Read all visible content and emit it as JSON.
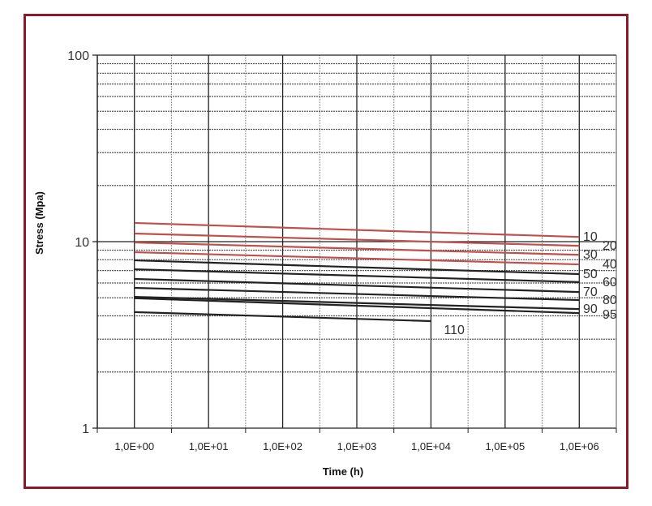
{
  "chart_data": {
    "type": "line",
    "title": "",
    "xlabel": "Time (h)",
    "ylabel": "Stress (Mpa)",
    "x_scale": "log",
    "y_scale": "log",
    "x_categories": [
      "1,0E+00",
      "1,0E+01",
      "1,0E+02",
      "1,0E+03",
      "1,0E+04",
      "1,0E+05",
      "1,0E+06"
    ],
    "x_values": [
      1,
      10,
      100,
      1000,
      10000,
      100000,
      1000000
    ],
    "y_ticks": [
      "1",
      "10",
      "100"
    ],
    "ylim": [
      1,
      100
    ],
    "grid": true,
    "series": [
      {
        "name": "10",
        "color": "#c0504d",
        "x": [
          1,
          1000000
        ],
        "y": [
          12.6,
          10.6
        ]
      },
      {
        "name": "20",
        "color": "#c0504d",
        "x": [
          1,
          1000000
        ],
        "y": [
          11.05,
          9.5
        ]
      },
      {
        "name": "30",
        "color": "#c0504d",
        "x": [
          1,
          1000000
        ],
        "y": [
          9.9,
          8.5
        ]
      },
      {
        "name": "40",
        "color": "#c0504d",
        "x": [
          1,
          1000000
        ],
        "y": [
          8.78,
          7.55
        ]
      },
      {
        "name": "50",
        "color": "#222222",
        "x": [
          1,
          1000000
        ],
        "y": [
          7.94,
          6.7
        ]
      },
      {
        "name": "60",
        "color": "#222222",
        "x": [
          1,
          1000000
        ],
        "y": [
          7.11,
          6.07
        ]
      },
      {
        "name": "70",
        "color": "#222222",
        "x": [
          1,
          1000000
        ],
        "y": [
          6.31,
          5.37
        ]
      },
      {
        "name": "80",
        "color": "#222222",
        "x": [
          1,
          1000000
        ],
        "y": [
          5.65,
          4.86
        ]
      },
      {
        "name": "90",
        "color": "#222222",
        "x": [
          1,
          1000000
        ],
        "y": [
          5.06,
          4.35
        ]
      },
      {
        "name": "95",
        "color": "#222222",
        "x": [
          1,
          1000000
        ],
        "y": [
          4.97,
          4.14
        ]
      },
      {
        "name": "110",
        "color": "#222222",
        "x": [
          1,
          10000
        ],
        "y": [
          4.19,
          3.75
        ]
      }
    ]
  },
  "frame_color": "#8b1a2b"
}
